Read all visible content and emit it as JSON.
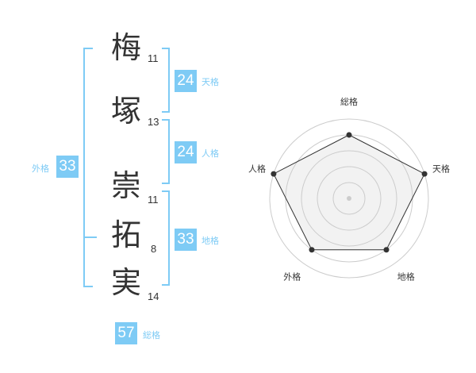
{
  "name_chars": [
    {
      "char": "梅",
      "strokes": "11"
    },
    {
      "char": "塚",
      "strokes": "13"
    },
    {
      "char": "崇",
      "strokes": "11"
    },
    {
      "char": "拓",
      "strokes": "8"
    },
    {
      "char": "実",
      "strokes": "14"
    }
  ],
  "fortunes": {
    "tenkaku": {
      "label": "天格",
      "value": "24"
    },
    "jinkaku": {
      "label": "人格",
      "value": "24"
    },
    "chikaku": {
      "label": "地格",
      "value": "33"
    },
    "gaikaku": {
      "label": "外格",
      "value": "33"
    },
    "soukaku": {
      "label": "総格",
      "value": "57"
    }
  },
  "colors": {
    "accent": "#7ecbf5",
    "text": "#333333"
  },
  "chart_data": {
    "type": "radar",
    "categories": [
      "総格",
      "天格",
      "地格",
      "外格",
      "人格"
    ],
    "values": [
      4,
      5,
      4,
      4,
      5
    ],
    "rlim": [
      0,
      5
    ],
    "grid": true
  }
}
